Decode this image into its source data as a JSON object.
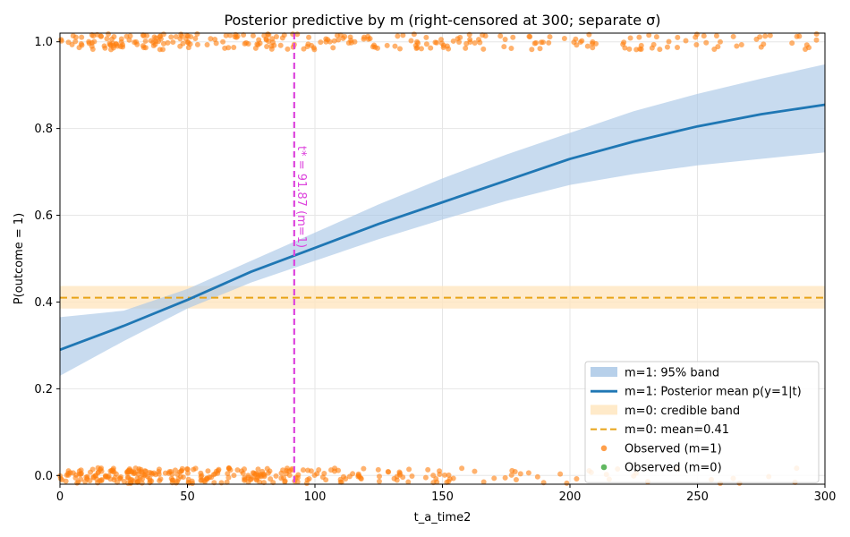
{
  "chart_data": {
    "type": "line",
    "title": "Posterior predictive by m (right-censored at 300; separate σ)",
    "xlabel": "t_a_time2",
    "ylabel": "P(outcome = 1)",
    "xlim": [
      0,
      300
    ],
    "ylim": [
      -0.02,
      1.02
    ],
    "xticks": [
      0,
      50,
      100,
      150,
      200,
      250,
      300
    ],
    "yticks": [
      0.0,
      0.2,
      0.4,
      0.6,
      0.8,
      1.0
    ],
    "grid": true,
    "legend_position": "bottom-right",
    "colors": {
      "band_m1": "#aac8e6",
      "mean_m1": "#1f77b4",
      "band_m0": "#ffe6c0",
      "mean_m0": "#e8a317",
      "observed_m1": "#ff7f0e",
      "observed_m0": "#2ca02c",
      "threshold": "#dd44dd"
    },
    "curve_m1": {
      "x": [
        0,
        25,
        50,
        75,
        100,
        125,
        150,
        175,
        200,
        225,
        250,
        275,
        300
      ],
      "mean": [
        0.29,
        0.345,
        0.405,
        0.47,
        0.525,
        0.58,
        0.63,
        0.68,
        0.73,
        0.77,
        0.805,
        0.833,
        0.855
      ],
      "lower": [
        0.23,
        0.31,
        0.385,
        0.445,
        0.495,
        0.545,
        0.59,
        0.633,
        0.67,
        0.695,
        0.715,
        0.73,
        0.745
      ],
      "upper": [
        0.365,
        0.38,
        0.43,
        0.495,
        0.56,
        0.625,
        0.685,
        0.74,
        0.79,
        0.84,
        0.88,
        0.915,
        0.948
      ]
    },
    "m0": {
      "mean": 0.41,
      "lower": 0.385,
      "upper": 0.437
    },
    "threshold": {
      "x": 91.87,
      "label": "t* = 91.87 (m=1)"
    },
    "observed": {
      "m1_y1_density": [
        0.32,
        0.3,
        0.26,
        0.2,
        0.18,
        0.16,
        0.14,
        0.12,
        0.1,
        0.09
      ],
      "m1_y0_density": [
        0.55,
        0.5,
        0.42,
        0.25,
        0.15,
        0.1,
        0.06,
        0.04,
        0.03,
        0.02
      ]
    },
    "legend": [
      {
        "key": "band_m1",
        "label": "m=1: 95% band"
      },
      {
        "key": "mean_m1",
        "label": "m=1: Posterior mean p(y=1|t)"
      },
      {
        "key": "band_m0",
        "label": "m=0: credible band"
      },
      {
        "key": "mean_m0",
        "label": "m=0: mean=0.41"
      },
      {
        "key": "observed_m1",
        "label": "Observed (m=1)"
      },
      {
        "key": "observed_m0",
        "label": "Observed (m=0)"
      }
    ]
  }
}
